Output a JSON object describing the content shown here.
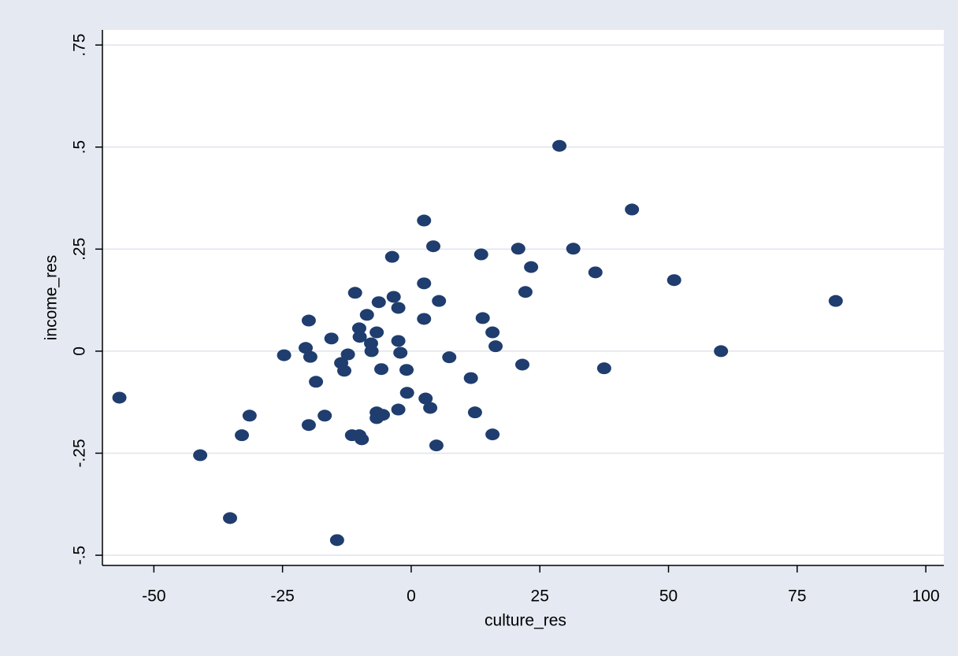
{
  "chart_data": {
    "type": "scatter",
    "x_label": "culture_res",
    "y_label": "income_res",
    "xlim": [
      -60,
      103.5
    ],
    "ylim": [
      -0.525,
      0.787
    ],
    "xticks": [
      -50,
      -25,
      0,
      25,
      50,
      75,
      100
    ],
    "yticks": [
      {
        "value": -0.5,
        "label": "-.5"
      },
      {
        "value": -0.25,
        "label": "-.25"
      },
      {
        "value": 0,
        "label": "0"
      },
      {
        "value": 0.25,
        "label": ".25"
      },
      {
        "value": 0.5,
        "label": ".5"
      },
      {
        "value": 0.75,
        "label": ".75"
      }
    ],
    "grid": true,
    "color": "#1f3d6e",
    "x": [
      -56.7,
      -41.0,
      -35.2,
      -32.9,
      -31.4,
      -24.7,
      -20.5,
      -19.9,
      -19.6,
      -19.9,
      -18.5,
      -16.8,
      -15.5,
      -14.4,
      -13.6,
      -13.0,
      -12.3,
      -11.5,
      -10.9,
      -10.1,
      -10.0,
      -10.1,
      -9.6,
      -8.6,
      -7.8,
      -7.7,
      -6.7,
      -6.7,
      -6.7,
      -6.3,
      -5.8,
      -5.5,
      -3.7,
      -3.4,
      -2.5,
      -2.5,
      -2.1,
      -2.5,
      -0.9,
      -0.8,
      2.5,
      2.5,
      2.5,
      2.8,
      3.7,
      4.3,
      4.9,
      5.4,
      7.4,
      11.6,
      12.4,
      13.6,
      13.9,
      15.8,
      15.8,
      16.4,
      20.8,
      21.6,
      22.2,
      23.3,
      28.8,
      31.5,
      35.8,
      37.5,
      42.9,
      51.1,
      60.2,
      82.5
    ],
    "y": [
      -0.114,
      -0.255,
      -0.409,
      -0.206,
      -0.158,
      -0.01,
      0.008,
      0.075,
      -0.014,
      -0.181,
      -0.075,
      -0.158,
      0.031,
      -0.463,
      -0.029,
      -0.048,
      -0.008,
      -0.206,
      0.143,
      0.056,
      0.035,
      -0.206,
      -0.216,
      0.089,
      0.019,
      0.0,
      0.046,
      -0.15,
      -0.164,
      0.12,
      -0.044,
      -0.156,
      0.231,
      0.133,
      0.106,
      0.025,
      -0.004,
      -0.143,
      -0.046,
      -0.102,
      0.32,
      0.166,
      0.079,
      -0.116,
      -0.139,
      0.257,
      -0.231,
      0.123,
      -0.015,
      -0.066,
      -0.15,
      0.237,
      0.081,
      0.046,
      -0.204,
      0.012,
      0.251,
      -0.033,
      0.145,
      0.206,
      0.503,
      0.251,
      0.193,
      -0.042,
      0.347,
      0.174,
      0.0,
      0.123
    ]
  }
}
